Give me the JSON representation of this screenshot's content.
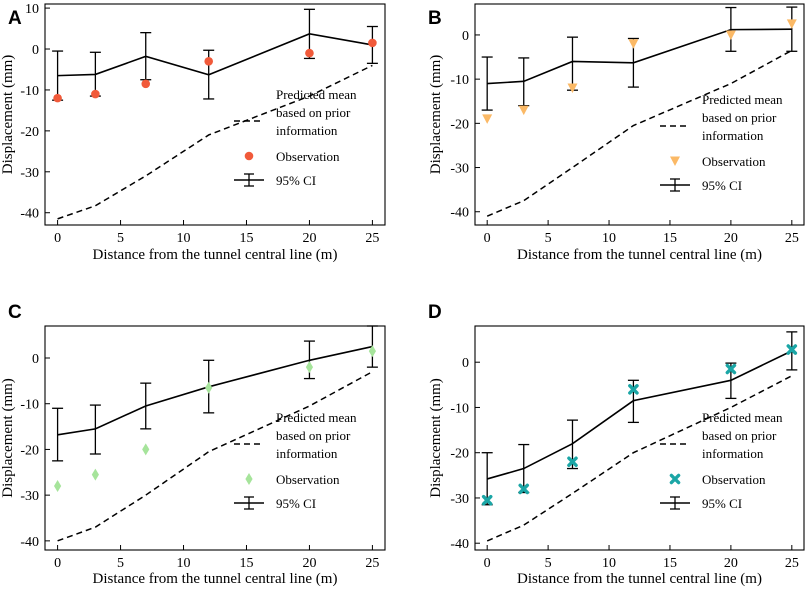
{
  "chart_data": [
    {
      "panel": "A",
      "type": "line",
      "xlabel": "Distance from the tunnel central line (m)",
      "ylabel": "Displacement (mm)",
      "xlim": [
        -1,
        26
      ],
      "ylim": [
        -43,
        11
      ],
      "xticks": [
        0,
        5,
        10,
        15,
        20,
        25
      ],
      "yticks": [
        10,
        0,
        -10,
        -20,
        -30,
        -40
      ],
      "x": [
        0,
        3,
        7,
        12,
        20,
        25
      ],
      "series": [
        {
          "name": "Predicted mean based on prior information",
          "style": "dashed",
          "x": [
            0,
            3,
            7,
            12,
            20,
            25
          ],
          "values": [
            -41.5,
            -38.3,
            -31,
            -21,
            -11.5,
            -4
          ]
        },
        {
          "name": "Observation",
          "style": "marker",
          "marker": "circle",
          "color": "#f15a3a",
          "values": [
            -12,
            -11,
            -8.5,
            -3,
            -1,
            1.5
          ]
        },
        {
          "name": "95% CI",
          "style": "errorbar",
          "mean": [
            -6.5,
            -6.2,
            -1.8,
            -6.3,
            3.7,
            1
          ],
          "lower": [
            -12.5,
            -11.5,
            -7.5,
            -12.2,
            -2.3,
            -3.5
          ],
          "upper": [
            -0.5,
            -0.8,
            4,
            -0.3,
            9.7,
            5.5
          ]
        }
      ],
      "legend": {
        "placement": "bottom-right",
        "entries": [
          "Predicted mean",
          "based on prior",
          "information",
          "Observation",
          "95% CI"
        ]
      }
    },
    {
      "panel": "B",
      "type": "line",
      "xlabel": "Distance from the tunnel central line (m)",
      "ylabel": "Displacement (mm)",
      "xlim": [
        -1,
        26
      ],
      "ylim": [
        -43,
        7
      ],
      "xticks": [
        0,
        5,
        10,
        15,
        20,
        25
      ],
      "yticks": [
        0,
        -10,
        -20,
        -30,
        -40
      ],
      "x": [
        0,
        3,
        7,
        12,
        20,
        25
      ],
      "series": [
        {
          "name": "Predicted mean based on prior information",
          "style": "dashed",
          "x": [
            0,
            3,
            7,
            12,
            20,
            25
          ],
          "values": [
            -41,
            -37.5,
            -30,
            -20.5,
            -11,
            -3.5
          ]
        },
        {
          "name": "Observation",
          "style": "marker",
          "marker": "triangle-down",
          "color": "#fbb966",
          "values": [
            -19,
            -17,
            -12,
            -2,
            0,
            2.5
          ]
        },
        {
          "name": "95% CI",
          "style": "errorbar",
          "mean": [
            -11,
            -10.5,
            -6,
            -6.3,
            1.2,
            1.3
          ],
          "lower": [
            -17,
            -16,
            -12.5,
            -11.8,
            -3.7,
            -3.7
          ],
          "upper": [
            -5,
            -5.2,
            -0.5,
            -0.8,
            6.2,
            6.3
          ]
        }
      ],
      "legend": {
        "placement": "bottom-right",
        "entries": [
          "Predicted mean",
          "based on prior",
          "information",
          "Observation",
          "95% CI"
        ]
      }
    },
    {
      "panel": "C",
      "type": "line",
      "xlabel": "Distance from the tunnel central line (m)",
      "ylabel": "Displacement (mm)",
      "xlim": [
        -1,
        26
      ],
      "ylim": [
        -42,
        7
      ],
      "xticks": [
        0,
        5,
        10,
        15,
        20,
        25
      ],
      "yticks": [
        0,
        -10,
        -20,
        -30,
        -40
      ],
      "x": [
        0,
        3,
        7,
        12,
        20,
        25
      ],
      "series": [
        {
          "name": "Predicted mean based on prior information",
          "style": "dashed",
          "x": [
            0,
            3,
            7,
            12,
            20,
            25
          ],
          "values": [
            -40,
            -37,
            -30,
            -20.5,
            -10.5,
            -3
          ]
        },
        {
          "name": "Observation",
          "style": "marker",
          "marker": "diamond",
          "color": "#a6e49b",
          "values": [
            -28,
            -25.5,
            -20,
            -6.5,
            -2,
            1.5
          ]
        },
        {
          "name": "95% CI",
          "style": "errorbar",
          "mean": [
            -16.8,
            -15.5,
            -10.5,
            -6.3,
            -0.5,
            2.5
          ],
          "lower": [
            -22.5,
            -21,
            -15.5,
            -12,
            -4.5,
            -2
          ],
          "upper": [
            -11,
            -10.3,
            -5.5,
            -0.5,
            3.7,
            7
          ]
        }
      ],
      "legend": {
        "placement": "bottom-right",
        "entries": [
          "Predicted mean",
          "based on prior",
          "information",
          "Observation",
          "95% CI"
        ]
      }
    },
    {
      "panel": "D",
      "type": "line",
      "xlabel": "Distance from the tunnel central line (m)",
      "ylabel": "Displacement (mm)",
      "xlim": [
        -1,
        26
      ],
      "ylim": [
        -41.5,
        8
      ],
      "xticks": [
        0,
        5,
        10,
        15,
        20,
        25
      ],
      "yticks": [
        0,
        -10,
        -20,
        -30,
        -40
      ],
      "x": [
        0,
        3,
        7,
        12,
        20,
        25
      ],
      "series": [
        {
          "name": "Predicted mean based on prior information",
          "style": "dashed",
          "x": [
            0,
            3,
            7,
            12,
            20,
            25
          ],
          "values": [
            -39.5,
            -36,
            -29,
            -20,
            -10,
            -3
          ]
        },
        {
          "name": "Observation",
          "style": "marker",
          "marker": "x",
          "color": "#1ba6a6",
          "values": [
            -30.5,
            -28,
            -22,
            -6,
            -1.5,
            2.8
          ]
        },
        {
          "name": "95% CI",
          "style": "errorbar",
          "mean": [
            -25.8,
            -23.5,
            -18,
            -8.5,
            -4,
            2.5
          ],
          "lower": [
            -31.5,
            -28.8,
            -23.5,
            -13.3,
            -8,
            -1.7
          ],
          "upper": [
            -20,
            -18.2,
            -12.8,
            -4,
            -0.2,
            6.7
          ]
        }
      ],
      "legend": {
        "placement": "bottom-right",
        "entries": [
          "Predicted mean",
          "based on prior",
          "information",
          "Observation",
          "95% CI"
        ]
      }
    }
  ]
}
